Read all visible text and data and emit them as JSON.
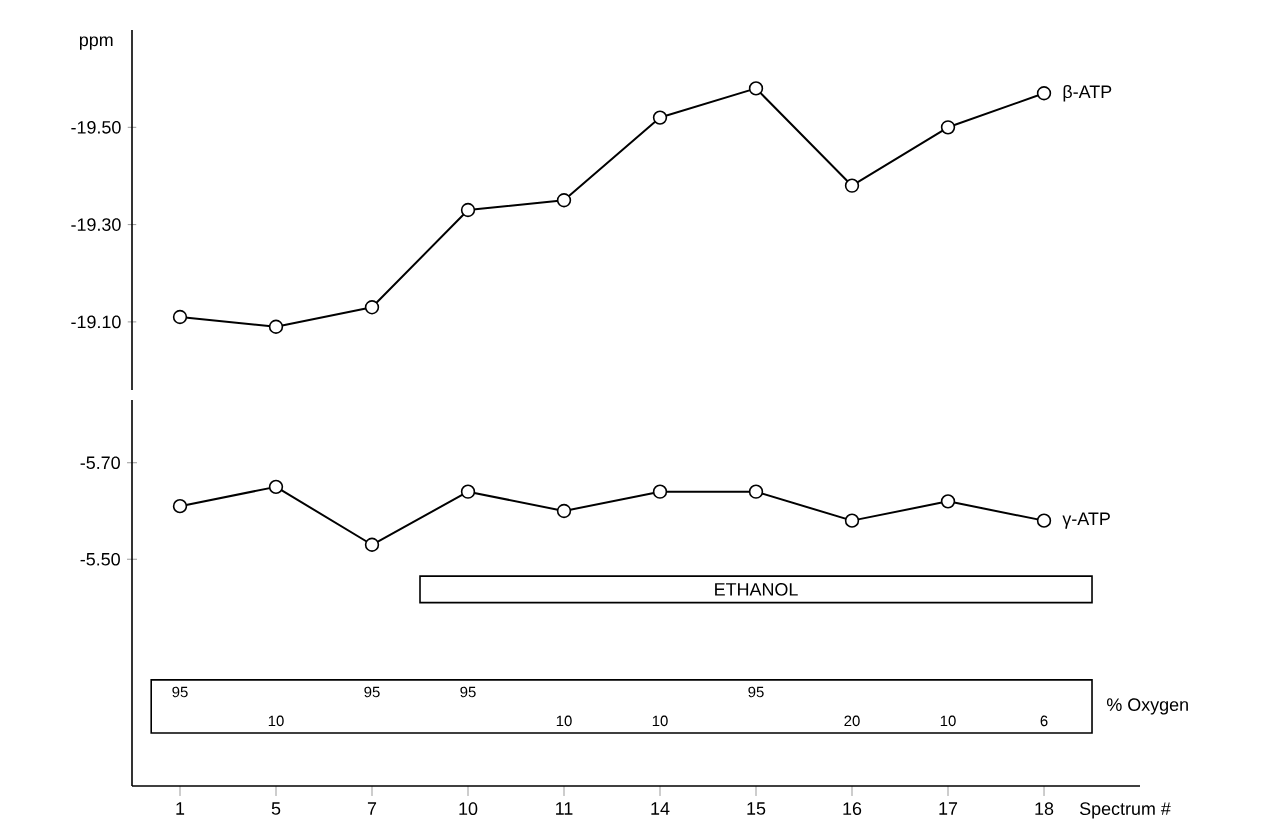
{
  "chart_data": [
    {
      "type": "line",
      "ylabel": "ppm",
      "categories": [
        "1",
        "5",
        "7",
        "10",
        "11",
        "14",
        "15",
        "16",
        "17",
        "18"
      ],
      "marker": "circle",
      "tick_labels": "y",
      "ylim": [
        -18.96,
        -19.7
      ],
      "yticks": [
        {
          "value": -19.1,
          "label": "-19.10"
        },
        {
          "value": -19.3,
          "label": "-19.30"
        },
        {
          "value": -19.5,
          "label": "-19.50"
        }
      ],
      "series": [
        {
          "name": "β-ATP",
          "color": "#000000",
          "values": [
            -19.11,
            -19.09,
            -19.13,
            -19.33,
            -19.35,
            -19.52,
            -19.58,
            -19.38,
            -19.5,
            -19.57
          ]
        }
      ]
    },
    {
      "type": "line",
      "xlabel": "Spectrum #",
      "categories": [
        "1",
        "5",
        "7",
        "10",
        "11",
        "14",
        "15",
        "16",
        "17",
        "18"
      ],
      "marker": "circle",
      "ylim": [
        -5.03,
        -5.83
      ],
      "yticks": [
        {
          "value": -5.5,
          "label": "-5.50"
        },
        {
          "value": -5.7,
          "label": "-5.70"
        }
      ],
      "annotations": [
        "ETHANOL",
        "% Oxygen",
        "95",
        "10",
        "95",
        "95",
        "10",
        "10",
        "95",
        "20",
        "10",
        "6"
      ],
      "series": [
        {
          "name": "γ-ATP",
          "color": "#000000",
          "values": [
            -5.61,
            -5.65,
            -5.53,
            -5.64,
            -5.6,
            -5.64,
            -5.64,
            -5.58,
            -5.62,
            -5.58
          ]
        }
      ]
    }
  ]
}
